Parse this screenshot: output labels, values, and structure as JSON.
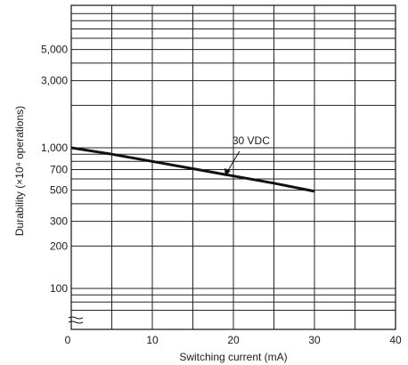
{
  "chart_data": {
    "type": "line",
    "title": "",
    "xlabel": "Switching current (mA)",
    "ylabel": "Durability (×10⁴ operations)",
    "xlim": [
      0,
      40
    ],
    "ylim": [
      50,
      10000
    ],
    "y_scale": "log",
    "grid": true,
    "x_ticks": [
      0,
      10,
      20,
      30,
      40
    ],
    "x_tick_labels": [
      "0",
      "10",
      "20",
      "30",
      "40"
    ],
    "y_ticks": [
      100,
      200,
      300,
      500,
      700,
      1000,
      3000,
      5000
    ],
    "y_tick_labels": [
      "100",
      "200",
      "300",
      "500",
      "700",
      "1,000",
      "3,000",
      "5,000"
    ],
    "series": [
      {
        "x": [
          0,
          5,
          10,
          15,
          20,
          25,
          30
        ],
        "y": [
          1000,
          900,
          800,
          710,
          630,
          560,
          490
        ],
        "color": "#111111"
      }
    ],
    "annotation": {
      "text": "30 VDC",
      "x": 19,
      "y": 610
    },
    "axis_break": true
  }
}
